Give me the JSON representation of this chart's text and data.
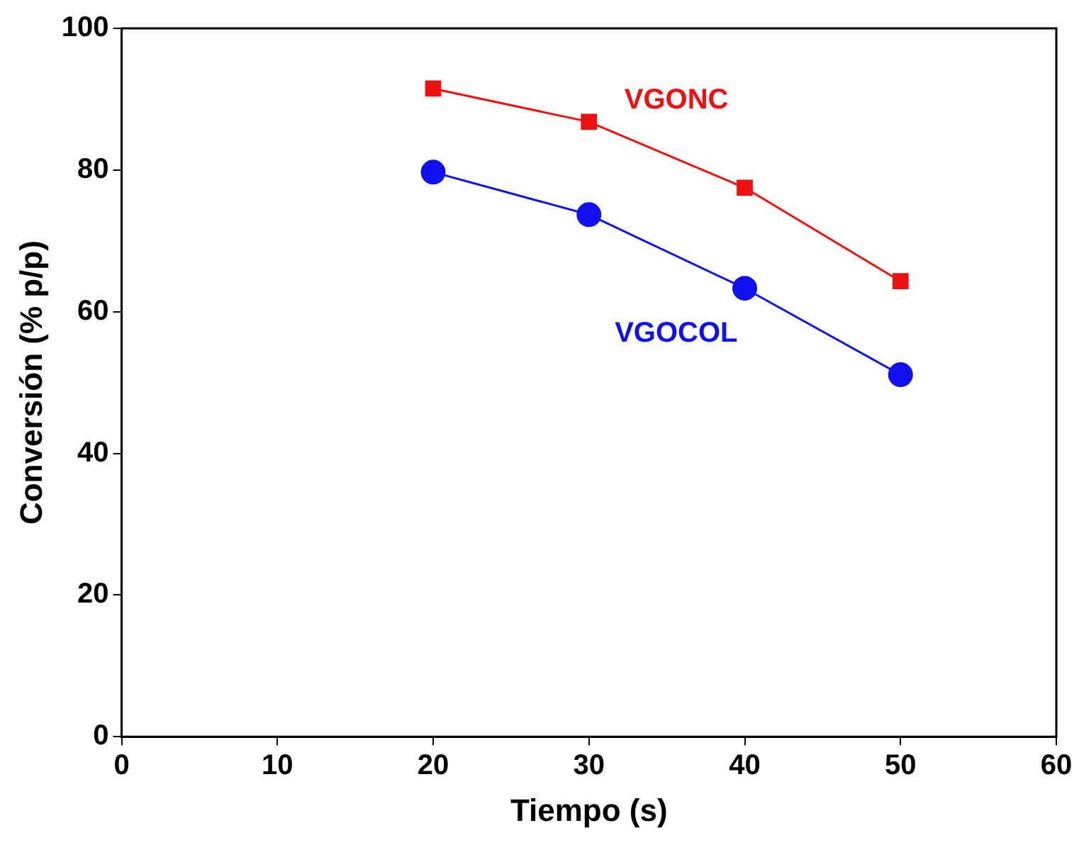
{
  "chart_data": {
    "type": "line",
    "xlabel": "Tiempo (s)",
    "ylabel": "Conversión (% p/p)",
    "x": [
      20,
      30,
      40,
      50
    ],
    "series": [
      {
        "name": "VGONC",
        "color": "#ee1111",
        "values": [
          91.5,
          86.8,
          77.5,
          64.3
        ],
        "marker": "square"
      },
      {
        "name": "VGOCOL",
        "color": "#1111ee",
        "values": [
          79.7,
          73.7,
          63.3,
          51.1
        ],
        "marker": "circle"
      }
    ],
    "xlim": [
      0,
      60
    ],
    "xticks": [
      0,
      10,
      20,
      30,
      40,
      50,
      60
    ],
    "ylim": [
      0,
      100
    ],
    "yticks": [
      0,
      20,
      40,
      60,
      80,
      100
    ],
    "grid": false,
    "legend": false,
    "line_style": "solid"
  }
}
